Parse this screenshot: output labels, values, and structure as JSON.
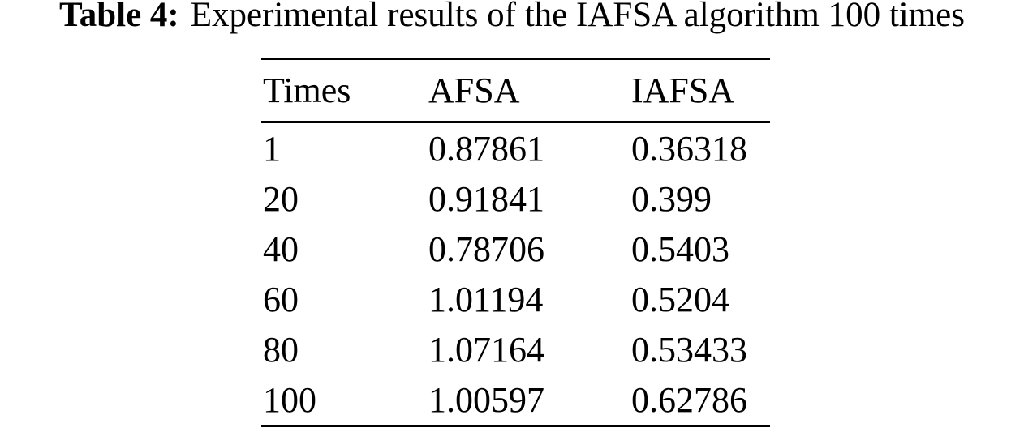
{
  "caption": {
    "label": "Table 4:",
    "text": "Experimental results of the IAFSA algorithm 100 times"
  },
  "table": {
    "columns": [
      "Times",
      "AFSA",
      "IAFSA"
    ],
    "rows": [
      [
        "1",
        "0.87861",
        "0.36318"
      ],
      [
        "20",
        "0.91841",
        "0.399"
      ],
      [
        "40",
        "0.78706",
        "0.5403"
      ],
      [
        "60",
        "1.01194",
        "0.5204"
      ],
      [
        "80",
        "1.07164",
        "0.53433"
      ],
      [
        "100",
        "1.00597",
        "0.62786"
      ]
    ]
  },
  "colors": {
    "background": "#ffffff",
    "text": "#000000",
    "rule": "#000000"
  }
}
